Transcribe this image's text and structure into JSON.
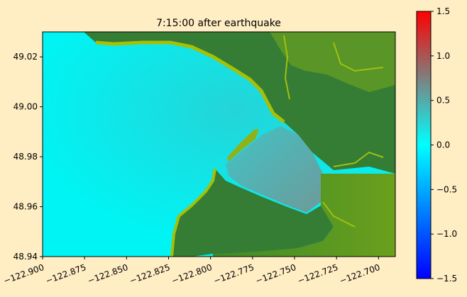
{
  "chart_data": {
    "type": "heatmap",
    "title": "7:15:00 after earthquake",
    "xlabel": "",
    "ylabel": "",
    "xlim": [
      -122.9,
      -122.69
    ],
    "ylim": [
      48.94,
      49.03
    ],
    "x_ticks": [
      -122.9,
      -122.875,
      -122.85,
      -122.825,
      -122.8,
      -122.775,
      -122.75,
      -122.725,
      -122.7
    ],
    "x_tick_labels": [
      "−122.900",
      "−122.875",
      "−122.850",
      "−122.825",
      "−122.800",
      "−122.775",
      "−122.750",
      "−122.725",
      "−122.700"
    ],
    "y_ticks": [
      48.94,
      48.96,
      48.98,
      49.0,
      49.02
    ],
    "y_tick_labels": [
      "48.94",
      "48.96",
      "48.98",
      "49.00",
      "49.02"
    ],
    "colorbar": {
      "range": [
        -1.5,
        1.5
      ],
      "ticks": [
        -1.5,
        -1.0,
        -0.5,
        0.0,
        0.5,
        1.0,
        1.5
      ],
      "tick_labels": [
        "−1.5",
        "−1.0",
        "−0.5",
        "0.0",
        "0.5",
        "1.0",
        "1.5"
      ],
      "colors": [
        "#0000ff",
        "#00ffff",
        "#ff0000"
      ]
    },
    "description_values": {
      "open_water_value": 0.0,
      "bay_value_approx": 0.4
    },
    "colors": {
      "land_dark": "#357c35",
      "land_light": "#6fa218",
      "shore": "#9fbd0a",
      "water_open": "#00f0f0",
      "bay": "#5aa8a8"
    }
  }
}
